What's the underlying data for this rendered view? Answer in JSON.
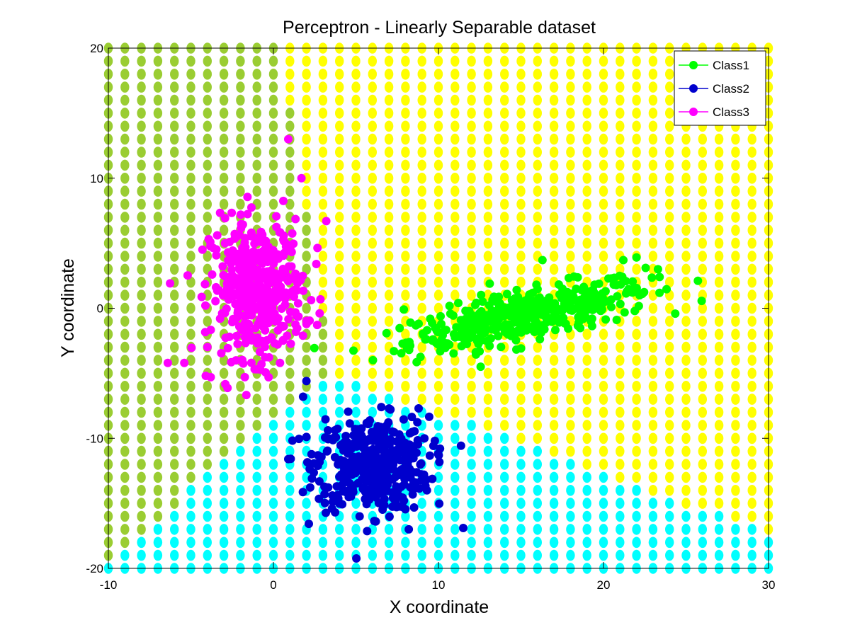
{
  "chart_data": {
    "type": "scatter",
    "title": "Perceptron - Linearly Separable dataset",
    "xlabel": "X coordinate",
    "ylabel": "Y coordinate",
    "xlim": [
      -10,
      30
    ],
    "ylim": [
      -20,
      20
    ],
    "xticks": [
      -10,
      0,
      10,
      20,
      30
    ],
    "yticks": [
      -20,
      -10,
      0,
      10,
      20
    ],
    "x_tick_labels": [
      "-10",
      "0",
      "10",
      "20",
      "30"
    ],
    "y_tick_labels": [
      "-20",
      "-10",
      "0",
      "10",
      "20"
    ],
    "grid": false,
    "legend_position": "top-right",
    "decision_regions": {
      "grid_step": 1,
      "x_range": [
        -10,
        30
      ],
      "y_range": [
        -20,
        20
      ],
      "colors": {
        "class1": "#ffff00",
        "class2": "#00ffff",
        "class3": "#9acd32"
      },
      "weights": {
        "class1": [
          1.0,
          0.5,
          0
        ],
        "class2": [
          0.3,
          -1.0,
          -5
        ],
        "class3": [
          -1.0,
          0.25,
          6
        ]
      }
    },
    "series": [
      {
        "name": "Class1",
        "color": "#00ff00",
        "cluster": {
          "center": [
            15.5,
            -0.5
          ],
          "spread_major": 3.8,
          "spread_minor": 0.9,
          "slope": 0.28,
          "count": 420
        },
        "points": [
          [
            7.9,
            -0.1
          ],
          [
            7.3,
            -3.3
          ],
          [
            8.3,
            -1.1
          ],
          [
            9.8,
            -1.5
          ],
          [
            12.8,
            -1.9
          ],
          [
            11.2,
            0.4
          ],
          [
            23.3,
            3.0
          ],
          [
            23.4,
            2.4
          ],
          [
            22.0,
            3.9
          ],
          [
            21.2,
            3.7
          ],
          [
            16.3,
            3.7
          ],
          [
            20.8,
            -0.9
          ],
          [
            13.1,
            -2.9
          ],
          [
            9.2,
            -2.4
          ]
        ]
      },
      {
        "name": "Class2",
        "color": "#0000cd",
        "cluster": {
          "center": [
            6.0,
            -12.0
          ],
          "spread_x": 1.7,
          "spread_y": 1.8,
          "count": 420
        },
        "points": [
          [
            2.0,
            -5.6
          ],
          [
            1.8,
            -6.8
          ],
          [
            0.9,
            -11.6
          ],
          [
            2.0,
            -9.9
          ],
          [
            8.8,
            -7.7
          ],
          [
            11.5,
            -16.9
          ],
          [
            8.2,
            -17.0
          ],
          [
            6.2,
            -16.4
          ],
          [
            9.3,
            -14.0
          ],
          [
            3.1,
            -14.3
          ]
        ]
      },
      {
        "name": "Class3",
        "color": "#ff00ff",
        "cluster": {
          "center": [
            -1.0,
            1.5
          ],
          "spread_x": 1.4,
          "spread_y": 2.6,
          "count": 420
        },
        "points": [
          [
            0.9,
            13.0
          ],
          [
            3.2,
            6.7
          ],
          [
            -5.4,
            -4.2
          ],
          [
            -6.4,
            -4.2
          ],
          [
            -4.1,
            -5.2
          ],
          [
            -3.8,
            -5.3
          ],
          [
            -4.3,
            4.5
          ],
          [
            1.7,
            10.0
          ],
          [
            2.6,
            3.4
          ],
          [
            0.4,
            -4.2
          ]
        ]
      }
    ]
  }
}
